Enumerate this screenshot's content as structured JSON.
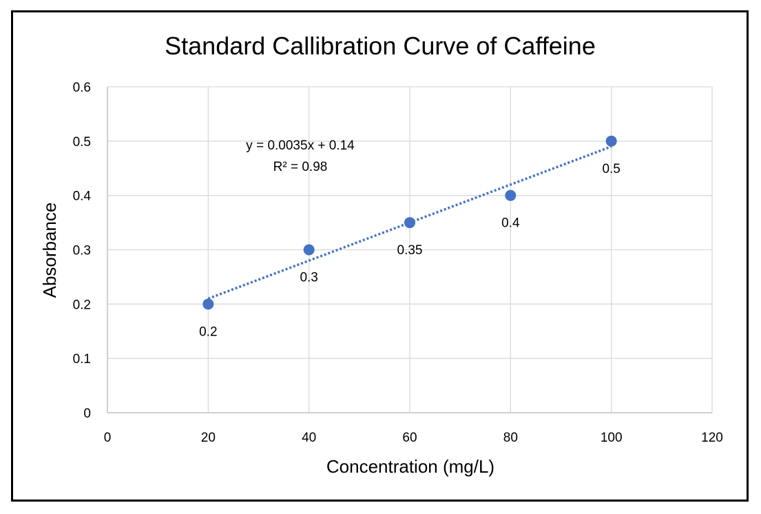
{
  "chart_data": {
    "type": "scatter",
    "title": "Standard Callibration Curve of Caffeine",
    "xlabel": "Concentration (mg/L)",
    "ylabel": "Absorbance",
    "xlim": [
      0,
      120
    ],
    "ylim": [
      0,
      0.6
    ],
    "x_ticks": [
      0,
      20,
      40,
      60,
      80,
      100,
      120
    ],
    "y_ticks": [
      0,
      0.1,
      0.2,
      0.3,
      0.4,
      0.5,
      0.6
    ],
    "x_tick_labels": [
      "0",
      "20",
      "40",
      "60",
      "80",
      "100",
      "120"
    ],
    "y_tick_labels": [
      "0",
      "0.1",
      "0.2",
      "0.3",
      "0.4",
      "0.5",
      "0.6"
    ],
    "grid": true,
    "legend": "none",
    "series": [
      {
        "x": [
          20,
          40,
          60,
          80,
          100
        ],
        "y": [
          0.2,
          0.3,
          0.35,
          0.4,
          0.5
        ],
        "data_labels": [
          "0.2",
          "0.3",
          "0.35",
          "0.4",
          "0.5"
        ],
        "color": "#4472C4"
      }
    ],
    "trendline": {
      "type": "linear",
      "slope": 0.0035,
      "intercept": 0.14,
      "x_range": [
        20,
        100
      ],
      "style": "dotted",
      "color": "#4472C4",
      "equation_label": "y = 0.0035x + 0.14",
      "r2_label": "R² = 0.98"
    },
    "colors": {
      "grid": "#d9d9d9",
      "axis": "#bfbfbf",
      "marker": "#4472C4"
    }
  }
}
